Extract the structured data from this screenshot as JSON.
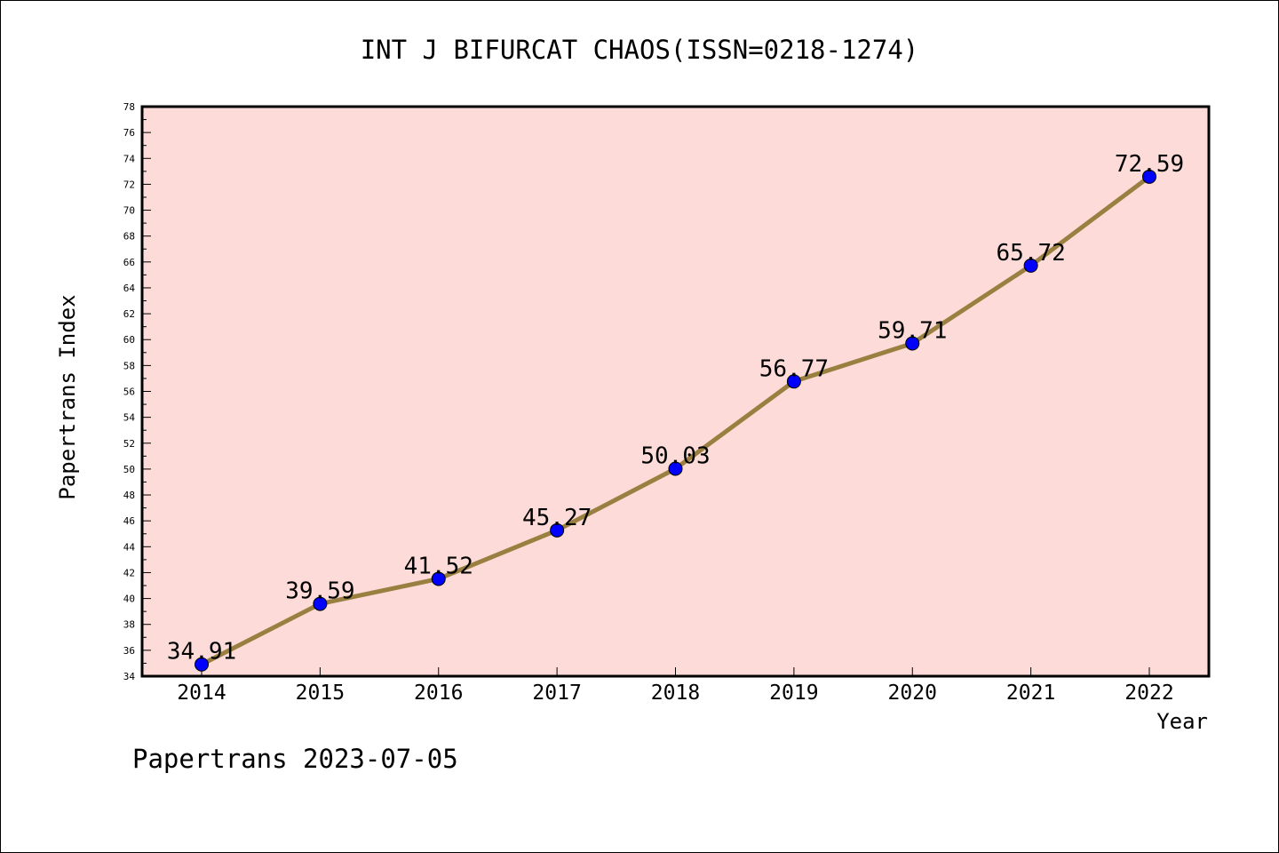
{
  "chart_data": {
    "type": "line",
    "title": "INT J BIFURCAT CHAOS(ISSN=0218-1274)",
    "xlabel": "Year",
    "ylabel": "Papertrans Index",
    "categories": [
      "2014",
      "2015",
      "2016",
      "2017",
      "2018",
      "2019",
      "2020",
      "2021",
      "2022"
    ],
    "series": [
      {
        "values": [
          34.91,
          39.59,
          41.52,
          45.27,
          50.03,
          56.77,
          59.71,
          65.72,
          72.59
        ]
      }
    ],
    "data_labels": [
      "34.91",
      "39.59",
      "41.52",
      "45.27",
      "50.03",
      "56.77",
      "59.71",
      "65.72",
      "72.59"
    ],
    "ylim": [
      34,
      78
    ],
    "yticks": [
      "34",
      "36",
      "38",
      "40",
      "42",
      "44",
      "46",
      "48",
      "50",
      "52",
      "54",
      "56",
      "58",
      "60",
      "62",
      "64",
      "66",
      "68",
      "70",
      "72",
      "74",
      "76",
      "78"
    ],
    "grid": false,
    "legend": "none",
    "colors": {
      "plot_background": "#fddbd8",
      "line": "#9a8040",
      "marker": "#0000ff",
      "frame": "#000000"
    }
  },
  "footer": {
    "text": "Papertrans 2023-07-05"
  }
}
